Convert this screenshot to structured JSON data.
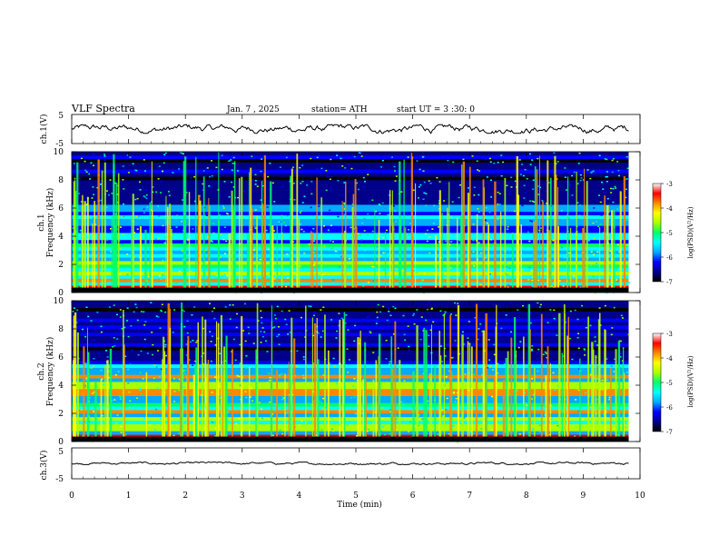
{
  "header": {
    "title": "VLF  Spectra",
    "date": "Jan.  7  , 2025",
    "station": "station= ATH",
    "start": "start  UT  =   3  :30: 0"
  },
  "chart_data": [
    {
      "type": "line",
      "name": "ch1-voltage",
      "ylabel": "ch.1(V)",
      "ylim": [
        -5,
        5
      ],
      "y_ticklabels": [
        "5",
        "-5"
      ],
      "xlim": [
        0,
        10
      ],
      "trace_mean": 0.0,
      "trace_range": [
        -1.5,
        1.5
      ],
      "trace_end_min": 9.8,
      "trace_color": "#000000"
    },
    {
      "type": "heatmap",
      "name": "ch1-spectrogram",
      "ylabel": "ch.1\nFrequency (kHz)",
      "ylim": [
        0,
        10
      ],
      "y_ticklabels": [
        "0",
        "2",
        "4",
        "6",
        "8",
        "10"
      ],
      "xlim": [
        0,
        10
      ],
      "data_end_min": 9.8,
      "colorbar": {
        "label": "log(PSD)(V²/Hz)",
        "range": [
          -7,
          -3
        ],
        "ticklabels": [
          "-3",
          "-4",
          "-5",
          "-6",
          "-7"
        ]
      },
      "bands_khz": [
        {
          "f": 0.3,
          "level": -3.3
        },
        {
          "f": 0.8,
          "level": -4.0
        },
        {
          "f": 1.4,
          "level": -4.6
        },
        {
          "f": 1.9,
          "level": -5.0
        },
        {
          "f": 2.2,
          "level": -4.8
        },
        {
          "f": 2.6,
          "level": -5.3
        },
        {
          "f": 3.4,
          "level": -5.2
        },
        {
          "f": 4.2,
          "level": -5.4
        },
        {
          "f": 5.3,
          "level": -5.6
        },
        {
          "f": 6.0,
          "level": -5.7
        }
      ]
    },
    {
      "type": "heatmap",
      "name": "ch2-spectrogram",
      "ylabel": "ch.2\nFrequency (kHz)",
      "ylim": [
        0,
        10
      ],
      "y_ticklabels": [
        "0",
        "2",
        "4",
        "6",
        "8",
        "10"
      ],
      "xlim": [
        0,
        10
      ],
      "data_end_min": 9.8,
      "colorbar": {
        "label": "log(PSD)(V²/Hz)",
        "range": [
          -7,
          -3
        ],
        "ticklabels": [
          "-3",
          "-4",
          "-5",
          "-6",
          "-7"
        ]
      },
      "bands_khz": [
        {
          "f": 0.4,
          "level": -3.6
        },
        {
          "f": 1.0,
          "level": -4.6
        },
        {
          "f": 1.6,
          "level": -4.4
        },
        {
          "f": 2.1,
          "level": -3.8
        },
        {
          "f": 2.7,
          "level": -4.9
        },
        {
          "f": 3.5,
          "level": -4.0
        },
        {
          "f": 4.0,
          "level": -4.8
        },
        {
          "f": 4.6,
          "level": -3.9
        },
        {
          "f": 5.4,
          "level": -5.3
        }
      ]
    },
    {
      "type": "line",
      "name": "ch3-voltage",
      "ylabel": "ch.3(V)",
      "ylim": [
        -5,
        5
      ],
      "y_ticklabels": [
        "5",
        "-5"
      ],
      "xlim": [
        0,
        10
      ],
      "trace_mean": 0.0,
      "trace_range": [
        -0.4,
        0.4
      ],
      "trace_end_min": 9.8,
      "trace_color": "#000000"
    }
  ],
  "x_axis": {
    "label": "Time  (min)",
    "ticklabels": [
      "0",
      "1",
      "2",
      "3",
      "4",
      "5",
      "6",
      "7",
      "8",
      "9",
      "10"
    ],
    "range": [
      0,
      10
    ]
  },
  "colormap": [
    "#000000",
    "#00008b",
    "#0000ff",
    "#00aaff",
    "#00ffff",
    "#00ff66",
    "#aaff00",
    "#ffff00",
    "#ff8800",
    "#ff0000",
    "#ffffff"
  ]
}
